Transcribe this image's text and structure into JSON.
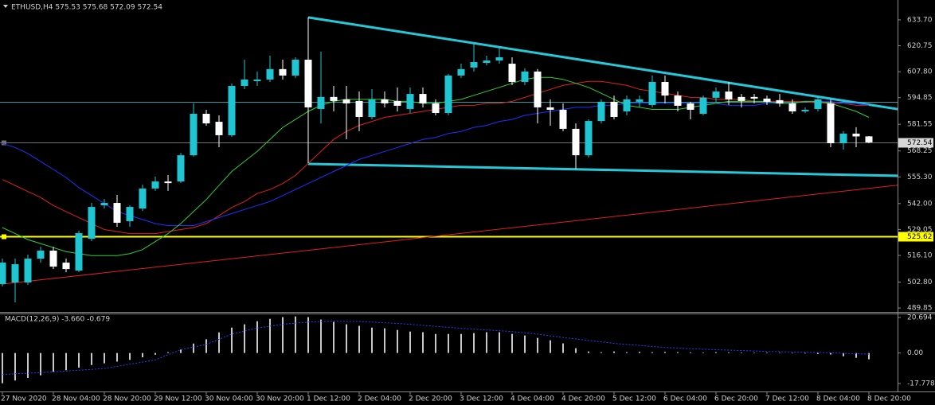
{
  "chart_data": [
    {
      "type": "candlestick",
      "title": "ETHUSD,H4  575.53 575.68 572.09 572.54",
      "categories": [
        "27 Nov 2020",
        null,
        null,
        null,
        "28 Nov 04:00",
        null,
        null,
        null,
        "28 Nov 20:00",
        null,
        null,
        null,
        "29 Nov 12:00",
        null,
        null,
        null,
        "30 Nov 04:00",
        null,
        null,
        null,
        "30 Nov 20:00",
        null,
        null,
        null,
        "1 Dec 12:00",
        null,
        null,
        null,
        "2 Dec 04:00",
        null,
        null,
        null,
        "2 Dec 20:00",
        null,
        null,
        null,
        "3 Dec 12:00",
        null,
        null,
        null,
        "4 Dec 04:00",
        null,
        null,
        null,
        "4 Dec 20:00",
        null,
        null,
        null,
        "5 Dec 12:00",
        null,
        null,
        null,
        "6 Dec 04:00",
        null,
        null,
        null,
        "6 Dec 20:00",
        null,
        null,
        null,
        "7 Dec 12:00",
        null,
        null,
        null,
        "8 Dec 04:00",
        null,
        null,
        null,
        "8 Dec 20:00"
      ],
      "open": [
        501.8,
        502.6,
        502.6,
        514.5,
        518.5,
        512.5,
        508.5,
        524.4,
        541.1,
        542.3,
        533.2,
        539.5,
        549.5,
        553.0,
        553.0,
        566.1,
        586.8,
        582.8,
        576.1,
        600.7,
        603.1,
        603.9,
        609.1,
        605.9,
        613.8,
        589.2,
        595.2,
        594.0,
        593.2,
        585.2,
        594.0,
        593.2,
        589.2,
        596.7,
        592.0,
        587.2,
        605.9,
        609.9,
        612.2,
        613.4,
        611.8,
        602.7,
        607.9,
        590.0,
        588.8,
        579.3,
        566.1,
        583.2,
        592.8,
        588.0,
        592.8,
        591.2,
        602.7,
        595.9,
        592.0,
        586.8,
        594.8,
        597.9,
        595.2,
        595.2,
        594.4,
        593.6,
        592.0,
        588.0,
        589.2,
        592.0,
        572.1,
        576.9,
        575.53
      ],
      "high": [
        514.5,
        514.5,
        516.5,
        520.4,
        520.4,
        514.5,
        528.4,
        542.3,
        544.3,
        546.3,
        541.1,
        551.4,
        555.4,
        556.2,
        567.3,
        592.0,
        588.8,
        586.0,
        601.9,
        613.8,
        607.9,
        615.8,
        613.8,
        615.0,
        634.9,
        617.8,
        600.7,
        600.7,
        597.9,
        599.1,
        597.9,
        599.9,
        599.9,
        599.9,
        594.0,
        606.7,
        611.8,
        621.8,
        615.8,
        619.8,
        615.0,
        609.5,
        609.1,
        594.0,
        592.0,
        582.0,
        584.0,
        594.0,
        595.9,
        595.9,
        595.9,
        605.9,
        605.9,
        597.9,
        592.8,
        595.9,
        599.9,
        602.7,
        596.7,
        596.7,
        595.9,
        596.7,
        594.0,
        590.0,
        595.9,
        594.0,
        578.1,
        580.1,
        575.68
      ],
      "low": [
        500.6,
        492.6,
        501.4,
        512.5,
        509.3,
        507.7,
        507.7,
        523.2,
        539.5,
        530.4,
        530.4,
        538.3,
        548.3,
        548.3,
        552.2,
        565.4,
        580.9,
        570.1,
        575.3,
        599.1,
        600.7,
        602.7,
        603.9,
        604.7,
        562.2,
        582.0,
        588.0,
        574.1,
        578.1,
        584.0,
        590.0,
        588.0,
        587.2,
        590.0,
        586.0,
        586.0,
        604.7,
        607.9,
        611.0,
        611.8,
        601.1,
        601.1,
        582.0,
        580.9,
        578.1,
        559.4,
        565.0,
        582.0,
        584.0,
        586.0,
        590.0,
        590.0,
        592.0,
        588.0,
        584.0,
        586.0,
        592.8,
        591.2,
        590.0,
        592.0,
        591.2,
        590.4,
        586.8,
        587.2,
        588.0,
        570.1,
        568.9,
        570.1,
        572.09
      ],
      "close": [
        512.5,
        511.7,
        514.5,
        518.5,
        510.5,
        509.3,
        527.2,
        540.3,
        542.3,
        532.4,
        540.3,
        549.5,
        553.0,
        552.2,
        566.1,
        586.8,
        582.0,
        576.1,
        600.7,
        603.9,
        603.9,
        609.1,
        605.9,
        613.8,
        590.0,
        595.2,
        593.2,
        592.0,
        585.2,
        594.0,
        592.0,
        590.8,
        596.7,
        592.0,
        587.2,
        605.9,
        609.1,
        612.6,
        613.4,
        615.0,
        602.7,
        607.9,
        590.0,
        588.8,
        579.3,
        566.1,
        583.2,
        592.8,
        585.2,
        594.0,
        594.0,
        602.7,
        595.9,
        590.8,
        588.8,
        594.8,
        597.9,
        594.0,
        593.2,
        594.4,
        592.8,
        592.0,
        588.0,
        588.8,
        594.0,
        572.1,
        576.9,
        575.5,
        572.54
      ],
      "up_color": "#1fc6d2",
      "down_color": "#ffffff",
      "lines": [
        {
          "color": "#e02020",
          "values": [
            554,
            551,
            548,
            545,
            541,
            538,
            535,
            532,
            529,
            528,
            527,
            527,
            527,
            528,
            529,
            530,
            532,
            536,
            540,
            543,
            547,
            549,
            552,
            556,
            562,
            568,
            574,
            578,
            581,
            583,
            585,
            586,
            587,
            588,
            589,
            590,
            591,
            591,
            592,
            592,
            593,
            595,
            597,
            599,
            601,
            602,
            603,
            603,
            602,
            601,
            599,
            598,
            597,
            596,
            595,
            595,
            594,
            594,
            594,
            593,
            593,
            593,
            593,
            593,
            592,
            592,
            592,
            591,
            591
          ]
        },
        {
          "color": "#2030ff",
          "values": [
            572,
            570,
            567,
            563,
            559,
            555,
            550,
            546,
            542,
            538,
            536,
            534,
            532,
            531,
            531,
            531,
            533,
            535,
            537,
            539,
            541,
            543,
            546,
            549,
            552,
            555,
            558,
            561,
            564,
            566,
            568,
            570,
            572,
            574,
            575,
            577,
            578,
            580,
            581,
            583,
            584,
            586,
            587,
            588,
            589,
            590,
            590,
            591,
            591,
            592,
            592,
            592,
            592,
            592,
            592,
            592,
            592,
            591,
            591,
            591,
            592,
            592,
            592,
            593,
            593,
            593,
            592,
            592,
            591
          ]
        },
        {
          "color": "#30d030",
          "values": [
            530,
            527,
            524,
            522,
            520,
            518,
            517,
            516,
            516,
            516,
            517,
            519,
            523,
            527,
            532,
            538,
            544,
            551,
            558,
            563,
            568,
            574,
            580,
            584,
            588,
            591,
            593,
            594,
            594,
            594,
            594,
            593,
            593,
            592,
            592,
            593,
            594,
            596,
            598,
            600,
            602,
            604,
            605,
            605,
            604,
            602,
            600,
            597,
            594,
            591,
            590,
            589,
            589,
            589,
            590,
            591,
            592,
            593,
            593,
            593,
            593,
            592,
            592,
            593,
            593,
            592,
            590,
            588,
            585
          ]
        }
      ],
      "trendlines": [
        {
          "color": "#25c8d8",
          "thick": true,
          "x": [
            24,
            70.6
          ],
          "y": [
            634.9,
            588.8
          ]
        },
        {
          "color": "#25c8d8",
          "thick": true,
          "x": [
            24,
            70.6
          ],
          "y": [
            561.8,
            555.8
          ]
        },
        {
          "color": "#e02020",
          "thick": false,
          "x": [
            0,
            70.6
          ],
          "y": [
            501.8,
            551.4
          ]
        }
      ],
      "hlines": [
        {
          "value": 592.8,
          "color": "#2f9aa3",
          "price_tag": false
        },
        {
          "value": 572.54,
          "color": "#707070",
          "price_tag": true,
          "tag_color": "#d8d8d8"
        },
        {
          "value": 525.62,
          "color": "#ffff00",
          "price_tag": true,
          "tag_color": "#ffff00"
        }
      ],
      "ylim": [
        487.9,
        643.6
      ],
      "yticks": [
        {
          "value": 633.7,
          "label": "633.70"
        },
        620.75,
        {
          "value": 607.8,
          "label": "607.80"
        },
        594.85,
        581.55,
        568.25,
        {
          "value": 555.3,
          "label": "555.30"
        },
        {
          "value": 542,
          "label": "542.00"
        },
        529.05,
        {
          "value": 516.1,
          "label": "516.10"
        },
        {
          "value": 502.8,
          "label": "502.80"
        },
        489.85
      ]
    },
    {
      "type": "bar",
      "title": "MACD(12,26,9) -3.660 -0.679",
      "color": "#c8c8c8",
      "values": [
        -17.6,
        -16,
        -14.5,
        -13,
        -11,
        -10,
        -8.5,
        -7,
        -6,
        -5,
        -4,
        -2.5,
        -1,
        0.5,
        2,
        5.5,
        8,
        12,
        14.8,
        16.7,
        18.5,
        19.9,
        20.9,
        21.3,
        20.9,
        19.5,
        18.1,
        16.7,
        15.8,
        14.8,
        14.4,
        13.4,
        12.5,
        12.1,
        11.1,
        11.1,
        11.1,
        11.6,
        12.1,
        12.1,
        11.1,
        10.2,
        8.8,
        7.4,
        5.6,
        2.8,
        0.9,
        0.5,
        0.9,
        0.5,
        0.7,
        0.5,
        0.6,
        0.5,
        0.4,
        0.3,
        0.5,
        0.4,
        0.3,
        0.2,
        0.3,
        0.2,
        0,
        -0.3,
        -0.6,
        -0.9,
        -1.9,
        -2.8,
        -3.66
      ],
      "signal": {
        "color": "#2a3cff",
        "values": [
          -12.5,
          -12.1,
          -11.8,
          -11.4,
          -11,
          -10.5,
          -10,
          -9.5,
          -9,
          -7.8,
          -6.5,
          -5.3,
          -4,
          -1,
          1.9,
          3.5,
          5,
          8,
          11,
          12.8,
          14.5,
          15.6,
          16.7,
          17.4,
          18,
          18.3,
          18.5,
          18.4,
          18.3,
          18,
          17.6,
          17.2,
          16.7,
          16.1,
          15.5,
          15,
          14.4,
          13.9,
          13.4,
          13,
          12.5,
          11.8,
          11,
          10,
          9,
          8.2,
          7.3,
          6.5,
          5.6,
          5,
          4.4,
          3.8,
          3.2,
          2.9,
          2.5,
          2.2,
          1.9,
          1.7,
          1.4,
          1.2,
          0.9,
          0.8,
          0.6,
          0.5,
          0.3,
          0.1,
          -0.2,
          -0.4,
          -0.679
        ]
      },
      "ylim": [
        -22.4,
        23.0
      ],
      "yticks": [
        20.694,
        {
          "value": 0,
          "label": "0.00"
        },
        -17.778
      ]
    }
  ]
}
